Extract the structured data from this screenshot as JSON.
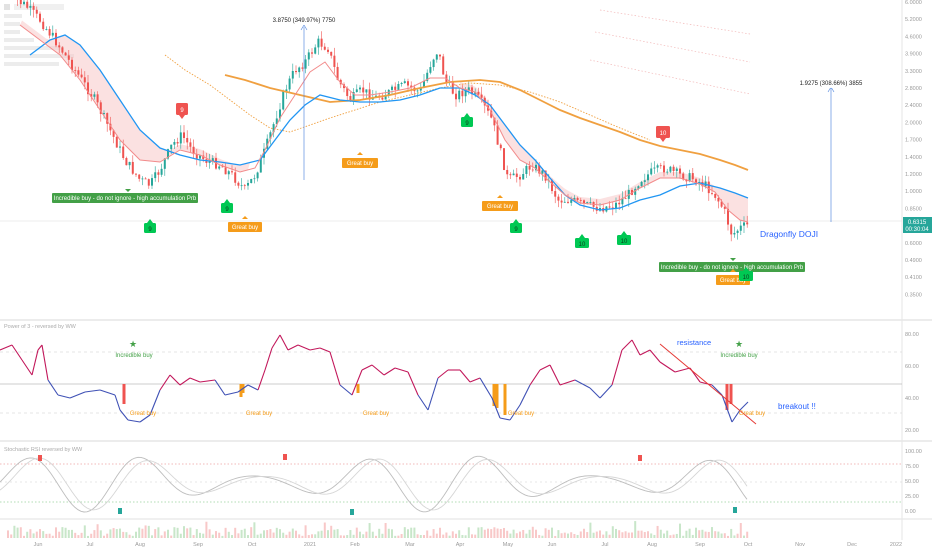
{
  "chart_data": [
    {
      "type": "line",
      "pane": "price",
      "annotations": {
        "measure_top": "3.8750 (349.97%) 7750",
        "measure_right": "1.9275 (308.66%) 3855",
        "incredible_buy_label": "Incredible buy - do not ignore - high accumulation Prb",
        "great_buy_label": "Great buy",
        "dragonfly": "Dragonfly DOJI",
        "sell_marks": [
          "9",
          "10"
        ],
        "buy_marks": [
          "9",
          "9",
          "9",
          "9",
          "9",
          "10",
          "10",
          "10"
        ],
        "price_tag": "0.6315",
        "price_timer": "00:30:04"
      }
    },
    {
      "type": "line",
      "pane": "power",
      "title": "Power of 3 - reversed by WW",
      "annotations": {
        "incredible_buy": "Incredible buy",
        "great_buy": "Great buy",
        "resistance": "resistance",
        "breakout": "breakout !!"
      }
    },
    {
      "type": "line",
      "pane": "stochastic",
      "title": "Stochastic RSI reversed by WW"
    }
  ],
  "colors": {
    "up": "#26a69a",
    "down": "#ef5350",
    "ema_blue": "#2196f3",
    "ema_orange": "#f0a040",
    "buy_green": "#43a047",
    "great_orange": "#f59c1a",
    "sell_red": "#ef5350",
    "blue_text": "#2962ff"
  },
  "x_ticks": [
    "Jun",
    "Jul",
    "Aug",
    "Sep",
    "Oct",
    "2021",
    "Feb",
    "Mar",
    "Apr",
    "May",
    "Jun",
    "Jul",
    "Aug",
    "Sep",
    "Oct",
    "Nov",
    "Dec",
    "2022"
  ],
  "price_axis": [
    "6.0000",
    "5.2000",
    "4.6000",
    "3.9000",
    "3.3000",
    "2.8000",
    "2.4000",
    "2.0000",
    "1.7000",
    "1.4000",
    "1.2000",
    "1.0000",
    "0.8500",
    "0.7300",
    "0.6000",
    "0.4900",
    "0.4100",
    "0.3500"
  ],
  "power_axis": [
    "80.00",
    "60.00",
    "40.00",
    "20.00"
  ],
  "stoch_axis": [
    "100.00",
    "75.00",
    "50.00",
    "25.00",
    "0.00"
  ]
}
